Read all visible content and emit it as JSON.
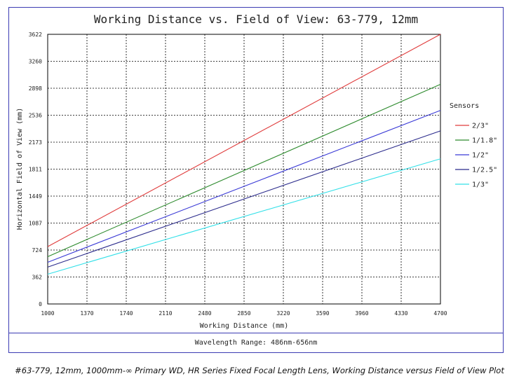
{
  "chart_data": {
    "type": "line",
    "title": "Working Distance vs. Field of View: 63-779, 12mm",
    "xlabel": "Working Distance (mm)",
    "ylabel": "Horizontal Field of View (mm)",
    "xlim": [
      1000,
      4700
    ],
    "ylim": [
      0,
      3622
    ],
    "x_ticks": [
      "1000",
      "1370",
      "1740",
      "2110",
      "2480",
      "2850",
      "3220",
      "3590",
      "3960",
      "4330",
      "4700"
    ],
    "y_ticks": [
      "0",
      "362",
      "724",
      "1087",
      "1449",
      "1811",
      "2173",
      "2536",
      "2898",
      "3260",
      "3622"
    ],
    "grid": true,
    "legend_title": "Sensors",
    "legend_position": "right",
    "series": [
      {
        "name": "2/3\"",
        "color": "#e03c3c",
        "x": [
          1000,
          4700
        ],
        "y": [
          770,
          3622
        ]
      },
      {
        "name": "1/1.8\"",
        "color": "#2e8b2e",
        "x": [
          1000,
          4700
        ],
        "y": [
          635,
          2950
        ]
      },
      {
        "name": "1/2\"",
        "color": "#3a3ad6",
        "x": [
          1000,
          4700
        ],
        "y": [
          560,
          2600
        ]
      },
      {
        "name": "1/2.5\"",
        "color": "#2b2b8c",
        "x": [
          1000,
          4700
        ],
        "y": [
          495,
          2325
        ]
      },
      {
        "name": "1/3\"",
        "color": "#33e0e8",
        "x": [
          1000,
          4700
        ],
        "y": [
          400,
          1950
        ]
      }
    ]
  },
  "footer": {
    "wavelength": "Wavelength Range: 486nm-656nm"
  },
  "caption": "#63-779, 12mm, 1000mm-∞ Primary WD, HR Series Fixed Focal Length Lens, Working Distance versus Field of View Plot"
}
